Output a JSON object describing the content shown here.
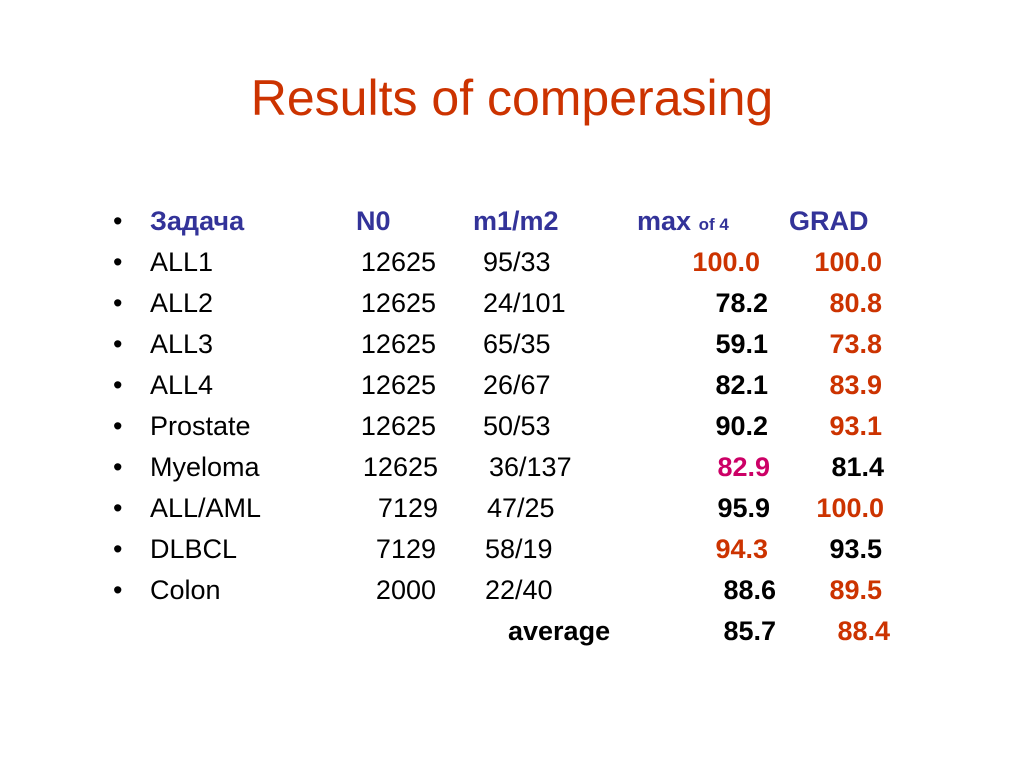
{
  "slide": {
    "title": "Results of comperasing",
    "bullet_char": "•",
    "colors": {
      "title": "#cc3300",
      "header": "#333399",
      "highlight_red": "#cc3300",
      "highlight_magenta": "#cc0066",
      "text": "#000000"
    },
    "header": {
      "task": "Задача",
      "n0": "N0",
      "ratio": "m1/m2",
      "max": "max",
      "max_suffix": "of 4",
      "grad": "GRAD"
    },
    "rows": [
      {
        "name": "ALL1",
        "n0": "12625",
        "ratio": "95/33",
        "max": "100.0",
        "grad": "100.0"
      },
      {
        "name": "ALL2",
        "n0": "12625",
        "ratio": "24/101",
        "max": "78.2",
        "grad": "80.8"
      },
      {
        "name": "ALL3",
        "n0": "12625",
        "ratio": "65/35",
        "max": "59.1",
        "grad": "73.8"
      },
      {
        "name": "ALL4",
        "n0": "12625",
        "ratio": "26/67",
        "max": "82.1",
        "grad": "83.9"
      },
      {
        "name": "Prostate",
        "n0": "12625",
        "ratio": "50/53",
        "max": "90.2",
        "grad": "93.1"
      },
      {
        "name": "Myeloma",
        "n0": "12625",
        "ratio": "36/137",
        "max": "82.9",
        "grad": "81.4"
      },
      {
        "name": "ALL/AML",
        "n0": "7129",
        "ratio": "47/25",
        "max": "95.9",
        "grad": "100.0"
      },
      {
        "name": "DLBCL",
        "n0": "7129",
        "ratio": "58/19",
        "max": "94.3",
        "grad": "93.5"
      },
      {
        "name": "Colon",
        "n0": "2000",
        "ratio": "22/40",
        "max": "88.6",
        "grad": "89.5"
      }
    ],
    "average": {
      "label": "average",
      "max": "85.7",
      "grad": "88.4"
    }
  }
}
